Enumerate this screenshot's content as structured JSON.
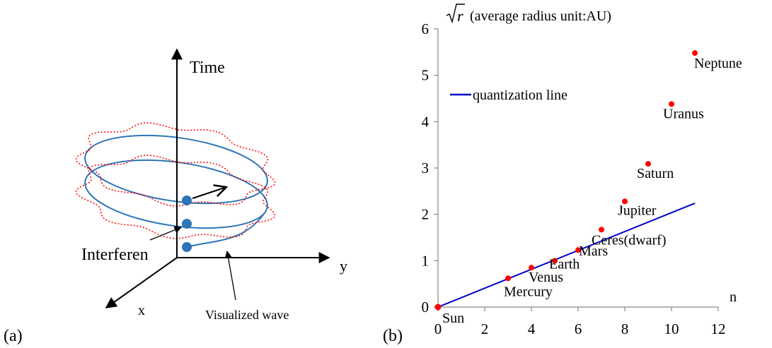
{
  "panel_a": {
    "label": "(a)",
    "axis_time": "Time",
    "axis_y": "y",
    "axis_x": "x",
    "interference_label": "Interferen",
    "wave_label": "Visualized wave",
    "colors": {
      "orbit": "#2e75b6",
      "wave": "#ff0000",
      "dot": "#2e75b6"
    }
  },
  "panel_b": {
    "label": "(b)",
    "y_title": "(average radius unit:AU)",
    "y_symbol": "r",
    "x_title": "n",
    "legend_label": "quantization line",
    "colors": {
      "points": "#ff0000",
      "line": "#0000cc"
    }
  },
  "chart_data": {
    "type": "scatter",
    "title": "",
    "xlabel": "n",
    "ylabel": "√r (average radius unit:AU)",
    "xlim": [
      0,
      12
    ],
    "ylim": [
      0,
      6
    ],
    "xticks": [
      0,
      2,
      4,
      6,
      8,
      10,
      12
    ],
    "yticks": [
      0,
      1,
      2,
      3,
      4,
      5,
      6
    ],
    "points": [
      {
        "name": "Sun",
        "x": 0,
        "y": 0
      },
      {
        "name": "Mercury",
        "x": 3,
        "y": 0.62
      },
      {
        "name": "Venus",
        "x": 4,
        "y": 0.85
      },
      {
        "name": "Earth",
        "x": 5,
        "y": 1.0
      },
      {
        "name": "Mars",
        "x": 6,
        "y": 1.23
      },
      {
        "name": "Ceres(dwarf)",
        "x": 7,
        "y": 1.67
      },
      {
        "name": "Jupiter",
        "x": 8,
        "y": 2.28
      },
      {
        "name": "Saturn",
        "x": 9,
        "y": 3.09
      },
      {
        "name": "Uranus",
        "x": 10,
        "y": 4.38
      },
      {
        "name": "Neptune",
        "x": 11,
        "y": 5.48
      }
    ],
    "line": {
      "name": "quantization line",
      "x": [
        0,
        11
      ],
      "y": [
        0,
        2.24
      ]
    },
    "legend": "top-left",
    "grid": false
  }
}
